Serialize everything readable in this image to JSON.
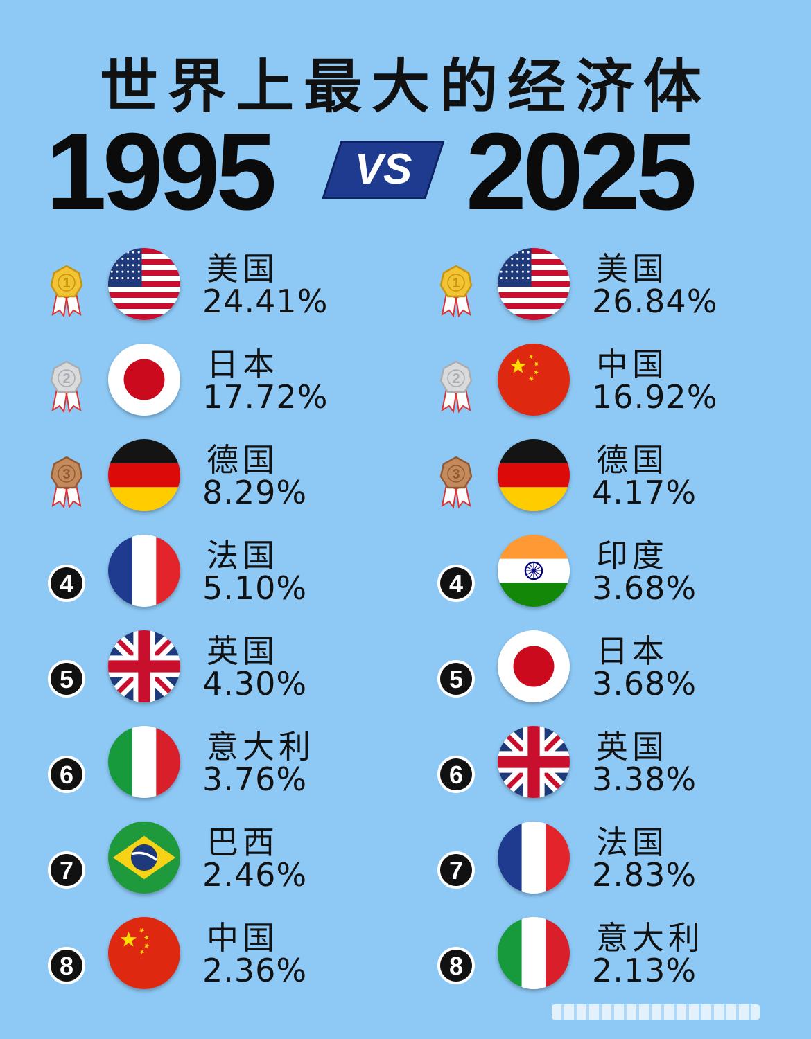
{
  "header": {
    "title": "世界上最大的经济体",
    "year_left": "1995",
    "vs": "VS",
    "year_right": "2025"
  },
  "chart_data": [
    {
      "type": "table",
      "x": "1995",
      "unit": "%",
      "rows": [
        {
          "rank": 1,
          "country": "美国",
          "value": 24.41,
          "label": "24.41%",
          "flag": "us"
        },
        {
          "rank": 2,
          "country": "日本",
          "value": 17.72,
          "label": "17.72%",
          "flag": "jp"
        },
        {
          "rank": 3,
          "country": "德国",
          "value": 8.29,
          "label": "8.29%",
          "flag": "de"
        },
        {
          "rank": 4,
          "country": "法国",
          "value": 5.1,
          "label": "5.10%",
          "flag": "fr"
        },
        {
          "rank": 5,
          "country": "英国",
          "value": 4.3,
          "label": "4.30%",
          "flag": "gb"
        },
        {
          "rank": 6,
          "country": "意大利",
          "value": 3.76,
          "label": "3.76%",
          "flag": "it"
        },
        {
          "rank": 7,
          "country": "巴西",
          "value": 2.46,
          "label": "2.46%",
          "flag": "br"
        },
        {
          "rank": 8,
          "country": "中国",
          "value": 2.36,
          "label": "2.36%",
          "flag": "cn"
        }
      ]
    },
    {
      "type": "table",
      "x": "2025",
      "unit": "%",
      "rows": [
        {
          "rank": 1,
          "country": "美国",
          "value": 26.84,
          "label": "26.84%",
          "flag": "us"
        },
        {
          "rank": 2,
          "country": "中国",
          "value": 16.92,
          "label": "16.92%",
          "flag": "cn"
        },
        {
          "rank": 3,
          "country": "德国",
          "value": 4.17,
          "label": "4.17%",
          "flag": "de"
        },
        {
          "rank": 4,
          "country": "印度",
          "value": 3.68,
          "label": "3.68%",
          "flag": "in"
        },
        {
          "rank": 5,
          "country": "日本",
          "value": 3.68,
          "label": "3.68%",
          "flag": "jp"
        },
        {
          "rank": 6,
          "country": "英国",
          "value": 3.38,
          "label": "3.38%",
          "flag": "gb"
        },
        {
          "rank": 7,
          "country": "法国",
          "value": 2.83,
          "label": "2.83%",
          "flag": "fr"
        },
        {
          "rank": 8,
          "country": "意大利",
          "value": 2.13,
          "label": "2.13%",
          "flag": "it"
        }
      ]
    }
  ],
  "colors": {
    "background": "#8ec9f5",
    "vs_badge": "#1f3b8f",
    "gold": "#e8b422",
    "silver": "#c7c9cc",
    "bronze": "#b47a4c",
    "rank_badge": "#111111"
  },
  "icons": {
    "medal_1": "gold-medal-icon",
    "medal_2": "silver-medal-icon",
    "medal_3": "bronze-medal-icon",
    "rank_badge": "numbered-circle-icon"
  }
}
